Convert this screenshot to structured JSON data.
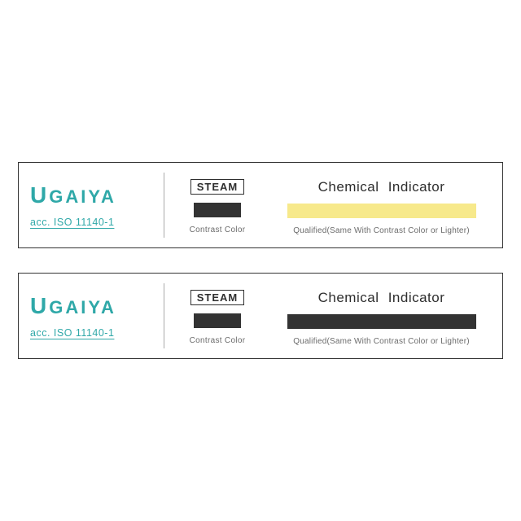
{
  "strips": [
    {
      "brand": {
        "first": "U",
        "rest": "GAIYA",
        "color": "#2fa8a8"
      },
      "iso": "acc. ISO 11140-1",
      "method": "STEAM",
      "contrast": {
        "color": "#333333",
        "label": "Contrast Color"
      },
      "indicator": {
        "title": "Chemical  Indicator",
        "swatch_color": "#f7e98b",
        "qualified": "Qualified(Same With Contrast Color or Lighter)"
      },
      "border_color": "#333333"
    },
    {
      "brand": {
        "first": "U",
        "rest": "GAIYA",
        "color": "#2fa8a8"
      },
      "iso": "acc. ISO 11140-1",
      "method": "STEAM",
      "contrast": {
        "color": "#333333",
        "label": "Contrast Color"
      },
      "indicator": {
        "title": "Chemical  Indicator",
        "swatch_color": "#333333",
        "qualified": "Qualified(Same With Contrast Color or Lighter)"
      },
      "border_color": "#333333"
    }
  ]
}
